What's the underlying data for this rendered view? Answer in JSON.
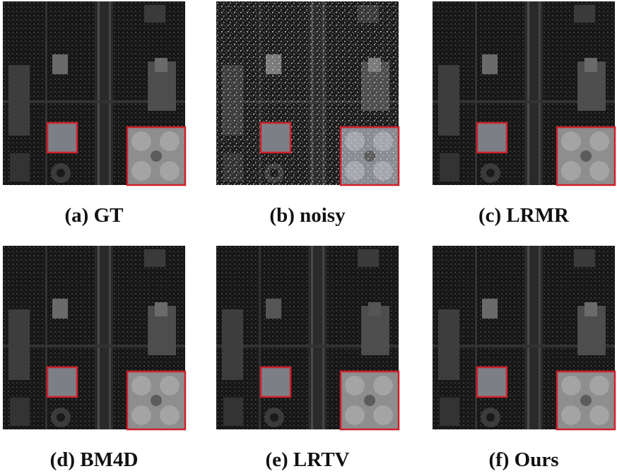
{
  "panels": [
    {
      "caption": "(a) GT"
    },
    {
      "caption": "(b) noisy"
    },
    {
      "caption": "(c) LRMR"
    },
    {
      "caption": "(d) BM4D"
    },
    {
      "caption": "(e) LRTV"
    },
    {
      "caption": "(f) Ours"
    }
  ]
}
